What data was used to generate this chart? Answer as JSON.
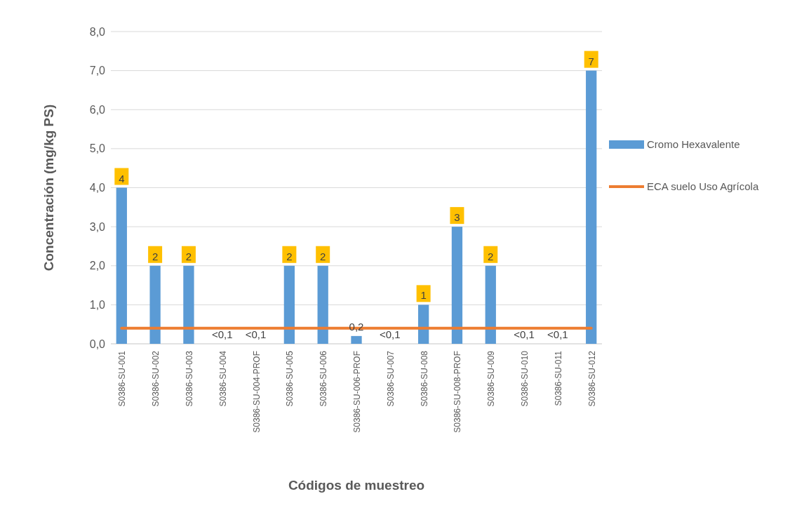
{
  "chart_data": {
    "type": "bar",
    "xlabel": "Códigos de muestreo",
    "ylabel": "Concentración (mg/kg PS)",
    "categories": [
      "S0386-SU-001",
      "S0386-SU-002",
      "S0386-SU-003",
      "S0386-SU-004",
      "S0386-SU-004-PROF",
      "S0386-SU-005",
      "S0386-SU-006",
      "S0386-SU-006-PROF",
      "S0386-SU-007",
      "S0386-SU-008",
      "S0386-SU-008-PROF",
      "S0386-SU-009",
      "S0386-SU-010",
      "S0386-SU-011",
      "S0386-SU-012"
    ],
    "series": [
      {
        "name": "Cromo Hexavalente",
        "color": "#5b9bd5",
        "values": [
          4,
          2,
          2,
          null,
          null,
          2,
          2,
          0.2,
          null,
          1,
          3,
          2,
          null,
          null,
          7
        ],
        "value_labels": [
          "4",
          "2",
          "2",
          "<0,1",
          "<0,1",
          "2",
          "2",
          "0,2",
          "<0,1",
          "1",
          "3",
          "2",
          "<0,1",
          "<0,1",
          "7"
        ]
      },
      {
        "name": "ECA suelo Uso Agrícola",
        "type": "line",
        "color": "#ed7d31",
        "values": [
          0.4,
          0.4,
          0.4,
          0.4,
          0.4,
          0.4,
          0.4,
          0.4,
          0.4,
          0.4,
          0.4,
          0.4,
          0.4,
          0.4,
          0.4
        ]
      }
    ],
    "ylim": [
      0,
      8
    ],
    "yticks": [
      {
        "value": 0,
        "label": "0,0"
      },
      {
        "value": 1,
        "label": "1,0"
      },
      {
        "value": 2,
        "label": "2,0"
      },
      {
        "value": 3,
        "label": "3,0"
      },
      {
        "value": 4,
        "label": "4,0"
      },
      {
        "value": 5,
        "label": "5,0"
      },
      {
        "value": 6,
        "label": "6,0"
      },
      {
        "value": 7,
        "label": "7,0"
      },
      {
        "value": 8,
        "label": "8,0"
      }
    ],
    "grid": "y",
    "legend": "right"
  }
}
